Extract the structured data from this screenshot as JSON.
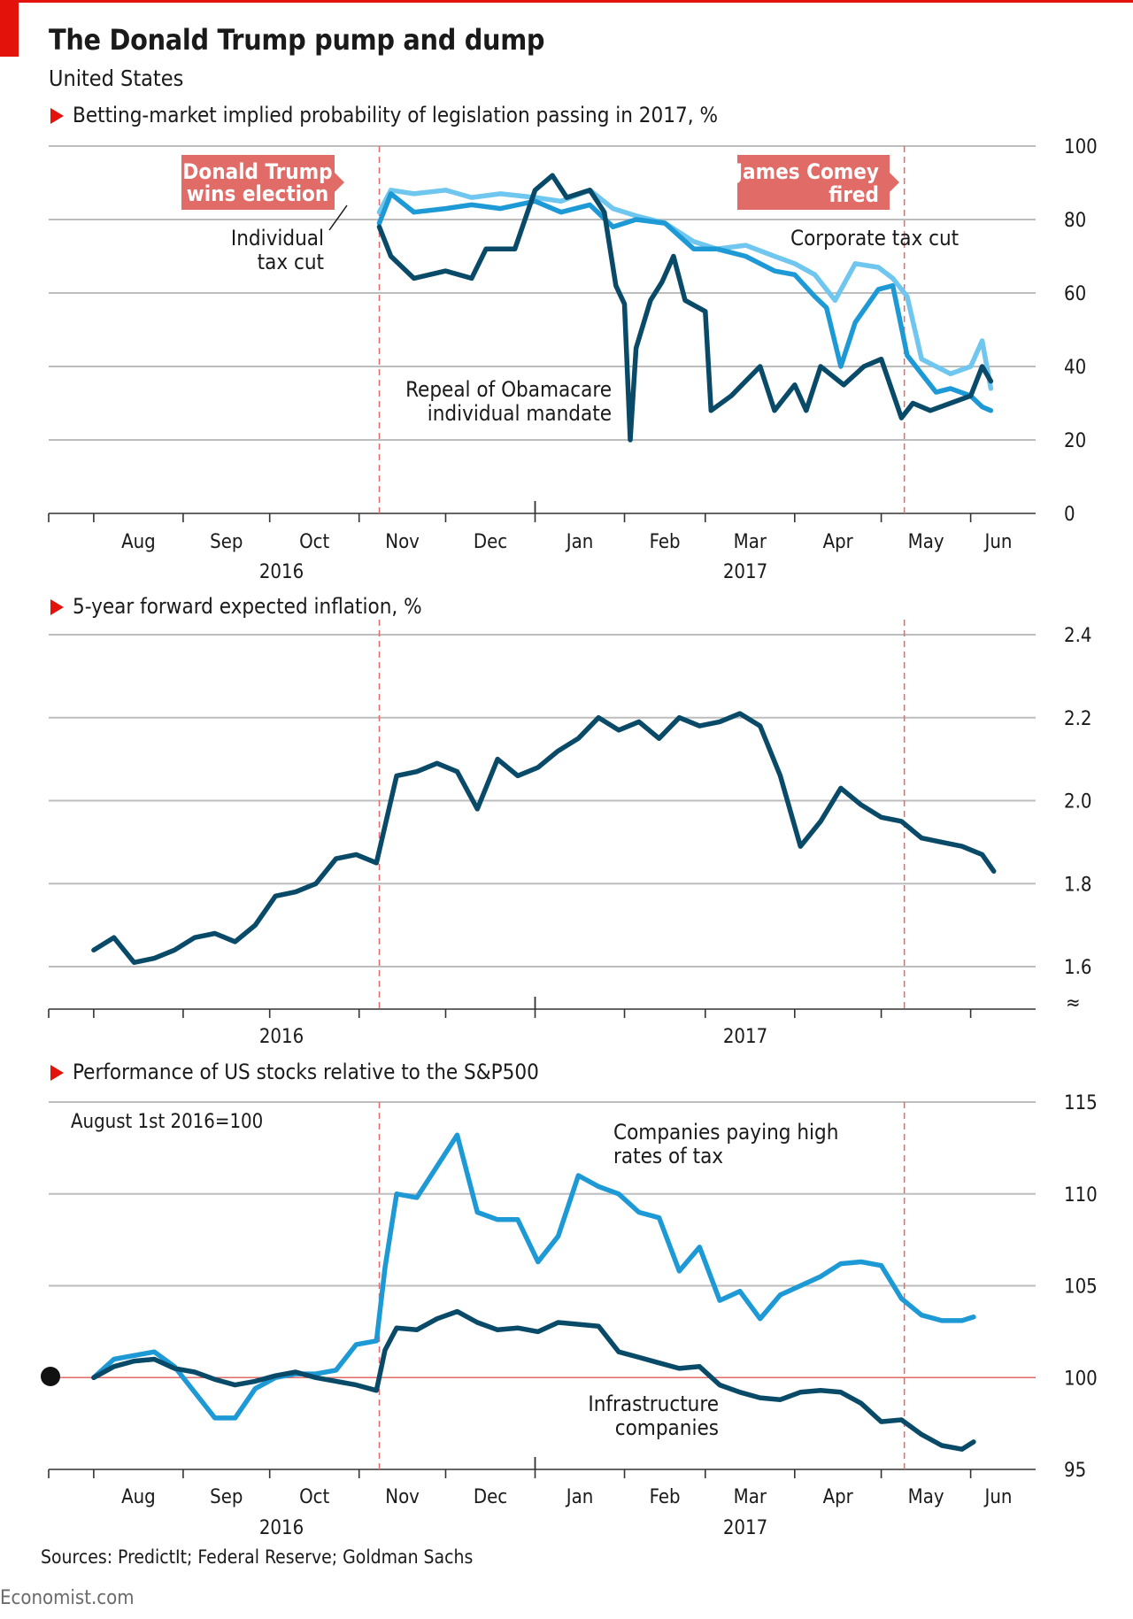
{
  "header": {
    "title": "The Donald Trump pump and dump",
    "subtitle": "United States"
  },
  "footer": {
    "source": "Sources: PredictIt; Federal Reserve; Goldman Sachs",
    "brand": "Economist.com"
  },
  "colors": {
    "accent_red": "#e3120b",
    "event_box": "#e06b67",
    "dark_blue": "#084a67",
    "mid_blue": "#1d9ad6",
    "light_blue": "#6fc6ee",
    "grid": "#bdbdbd"
  },
  "chart_data": [
    {
      "type": "line",
      "title": "Betting-market implied probability of legislation passing in 2017, %",
      "x_axis": {
        "months": [
          "Aug",
          "Sep",
          "Oct",
          "Nov",
          "Dec",
          "Jan",
          "Feb",
          "Mar",
          "Apr",
          "May",
          "Jun"
        ],
        "years": [
          "2016",
          "2017"
        ]
      },
      "y_ticks": [
        "100",
        "80",
        "60",
        "40",
        "20",
        "0"
      ],
      "ylim": [
        0,
        100
      ],
      "events": [
        {
          "label_lines": [
            "Donald Trump",
            "wins election"
          ],
          "date": "2016-11-08"
        },
        {
          "label_lines": [
            "James Comey",
            "fired"
          ],
          "date": "2017-05-09"
        }
      ],
      "series": [
        {
          "name_lines": [
            "Individual",
            "tax cut"
          ],
          "color": "light_blue",
          "x": [
            "2016-11-08",
            "2016-11-12",
            "2016-11-20",
            "2016-12-01",
            "2016-12-10",
            "2016-12-20",
            "2017-01-01",
            "2017-01-10",
            "2017-01-20",
            "2017-01-28",
            "2017-02-05",
            "2017-02-15",
            "2017-02-25",
            "2017-03-05",
            "2017-03-15",
            "2017-03-25",
            "2017-04-01",
            "2017-04-08",
            "2017-04-15",
            "2017-04-22",
            "2017-04-30",
            "2017-05-05",
            "2017-05-10",
            "2017-05-15",
            "2017-05-20",
            "2017-05-25",
            "2017-06-01",
            "2017-06-05",
            "2017-06-08"
          ],
          "y": [
            82,
            88,
            87,
            88,
            86,
            87,
            86,
            85,
            88,
            83,
            81,
            79,
            74,
            72,
            73,
            70,
            68,
            65,
            58,
            68,
            67,
            64,
            59,
            42,
            40,
            38,
            40,
            47,
            34
          ]
        },
        {
          "name_lines": [
            "Corporate tax cut"
          ],
          "color": "mid_blue",
          "x": [
            "2016-11-08",
            "2016-11-12",
            "2016-11-20",
            "2016-12-01",
            "2016-12-10",
            "2016-12-20",
            "2017-01-01",
            "2017-01-10",
            "2017-01-20",
            "2017-01-28",
            "2017-02-05",
            "2017-02-15",
            "2017-02-25",
            "2017-03-05",
            "2017-03-15",
            "2017-03-25",
            "2017-04-01",
            "2017-04-08",
            "2017-04-12",
            "2017-04-17",
            "2017-04-22",
            "2017-04-30",
            "2017-05-05",
            "2017-05-10",
            "2017-05-15",
            "2017-05-20",
            "2017-05-25",
            "2017-06-01",
            "2017-06-05",
            "2017-06-08"
          ],
          "y": [
            79,
            87,
            82,
            83,
            84,
            83,
            85,
            82,
            84,
            78,
            80,
            79,
            72,
            72,
            70,
            66,
            65,
            59,
            56,
            40,
            52,
            61,
            62,
            43,
            38,
            33,
            34,
            32,
            29,
            28
          ]
        },
        {
          "name_lines": [
            "Repeal of Obamacare",
            "individual mandate"
          ],
          "color": "dark_blue",
          "x": [
            "2016-11-08",
            "2016-11-12",
            "2016-11-20",
            "2016-12-01",
            "2016-12-10",
            "2016-12-15",
            "2016-12-25",
            "2017-01-01",
            "2017-01-07",
            "2017-01-12",
            "2017-01-20",
            "2017-01-25",
            "2017-01-29",
            "2017-02-01",
            "2017-02-03",
            "2017-02-05",
            "2017-02-10",
            "2017-02-14",
            "2017-02-18",
            "2017-02-22",
            "2017-03-01",
            "2017-03-03",
            "2017-03-10",
            "2017-03-20",
            "2017-03-25",
            "2017-04-01",
            "2017-04-05",
            "2017-04-10",
            "2017-04-18",
            "2017-04-25",
            "2017-05-01",
            "2017-05-08",
            "2017-05-12",
            "2017-05-18",
            "2017-05-25",
            "2017-06-01",
            "2017-06-05",
            "2017-06-08"
          ],
          "y": [
            78,
            70,
            64,
            66,
            64,
            72,
            72,
            88,
            92,
            86,
            88,
            82,
            62,
            57,
            20,
            45,
            58,
            63,
            70,
            58,
            55,
            28,
            32,
            40,
            28,
            35,
            28,
            40,
            35,
            40,
            42,
            26,
            30,
            28,
            30,
            32,
            40,
            36
          ]
        }
      ]
    },
    {
      "type": "line",
      "title": "5-year forward expected inflation, %",
      "x_axis": {
        "years": [
          "2016",
          "2017"
        ]
      },
      "y_ticks": [
        "2.4",
        "2.2",
        "2.0",
        "1.8",
        "1.6"
      ],
      "ylim": [
        1.55,
        2.4
      ],
      "series": [
        {
          "color": "dark_blue",
          "x": [
            "2016-08-01",
            "2016-08-08",
            "2016-08-15",
            "2016-08-22",
            "2016-08-29",
            "2016-09-05",
            "2016-09-12",
            "2016-09-19",
            "2016-09-26",
            "2016-10-03",
            "2016-10-10",
            "2016-10-17",
            "2016-10-24",
            "2016-10-31",
            "2016-11-07",
            "2016-11-14",
            "2016-11-21",
            "2016-11-28",
            "2016-12-05",
            "2016-12-12",
            "2016-12-19",
            "2016-12-26",
            "2017-01-02",
            "2017-01-09",
            "2017-01-16",
            "2017-01-23",
            "2017-01-30",
            "2017-02-06",
            "2017-02-13",
            "2017-02-20",
            "2017-02-27",
            "2017-03-06",
            "2017-03-13",
            "2017-03-20",
            "2017-03-27",
            "2017-04-03",
            "2017-04-10",
            "2017-04-17",
            "2017-04-24",
            "2017-05-01",
            "2017-05-08",
            "2017-05-15",
            "2017-05-22",
            "2017-05-29",
            "2017-06-05",
            "2017-06-09"
          ],
          "y": [
            1.64,
            1.67,
            1.61,
            1.62,
            1.64,
            1.67,
            1.68,
            1.66,
            1.7,
            1.77,
            1.78,
            1.8,
            1.86,
            1.87,
            1.85,
            2.06,
            2.07,
            2.09,
            2.07,
            1.98,
            2.1,
            2.06,
            2.08,
            2.12,
            2.15,
            2.2,
            2.17,
            2.19,
            2.15,
            2.2,
            2.18,
            2.19,
            2.21,
            2.18,
            2.06,
            1.89,
            1.95,
            2.03,
            1.99,
            1.96,
            1.95,
            1.91,
            1.9,
            1.89,
            1.87,
            1.83
          ]
        }
      ]
    },
    {
      "type": "line",
      "title": "Performance of US stocks relative to the S&P500",
      "note": "August 1st 2016=100",
      "x_axis": {
        "months": [
          "Aug",
          "Sep",
          "Oct",
          "Nov",
          "Dec",
          "Jan",
          "Feb",
          "Mar",
          "Apr",
          "May",
          "Jun"
        ],
        "years": [
          "2016",
          "2017"
        ]
      },
      "y_ticks": [
        "115",
        "110",
        "105",
        "100",
        "95"
      ],
      "ylim": [
        95,
        115
      ],
      "series": [
        {
          "name_lines": [
            "Companies paying high",
            "rates of tax"
          ],
          "color": "mid_blue",
          "x": [
            "2016-08-01",
            "2016-08-08",
            "2016-08-15",
            "2016-08-22",
            "2016-08-29",
            "2016-09-05",
            "2016-09-12",
            "2016-09-19",
            "2016-09-26",
            "2016-10-03",
            "2016-10-10",
            "2016-10-17",
            "2016-10-24",
            "2016-10-31",
            "2016-11-07",
            "2016-11-10",
            "2016-11-14",
            "2016-11-21",
            "2016-11-28",
            "2016-12-05",
            "2016-12-12",
            "2016-12-19",
            "2016-12-26",
            "2017-01-02",
            "2017-01-09",
            "2017-01-16",
            "2017-01-23",
            "2017-01-30",
            "2017-02-06",
            "2017-02-13",
            "2017-02-20",
            "2017-02-27",
            "2017-03-06",
            "2017-03-13",
            "2017-03-20",
            "2017-03-27",
            "2017-04-03",
            "2017-04-10",
            "2017-04-17",
            "2017-04-24",
            "2017-05-01",
            "2017-05-08",
            "2017-05-15",
            "2017-05-22",
            "2017-05-29",
            "2017-06-02"
          ],
          "y": [
            100,
            101,
            101.2,
            101.4,
            100.6,
            99.2,
            97.8,
            97.8,
            99.4,
            100,
            100.2,
            100.2,
            100.4,
            101.8,
            102,
            106,
            110,
            109.8,
            111.5,
            113.2,
            109,
            108.6,
            108.6,
            106.3,
            107.7,
            111,
            110.4,
            110,
            109,
            108.7,
            105.8,
            107.1,
            104.2,
            104.7,
            103.2,
            104.5,
            105,
            105.5,
            106.2,
            106.3,
            106.1,
            104.3,
            103.4,
            103.1,
            103.1,
            103.3
          ]
        },
        {
          "name_lines": [
            "Infrastructure",
            "companies"
          ],
          "color": "dark_blue",
          "x": [
            "2016-08-01",
            "2016-08-08",
            "2016-08-15",
            "2016-08-22",
            "2016-08-29",
            "2016-09-05",
            "2016-09-12",
            "2016-09-19",
            "2016-09-26",
            "2016-10-03",
            "2016-10-10",
            "2016-10-17",
            "2016-10-24",
            "2016-10-31",
            "2016-11-07",
            "2016-11-10",
            "2016-11-14",
            "2016-11-21",
            "2016-11-28",
            "2016-12-05",
            "2016-12-12",
            "2016-12-19",
            "2016-12-26",
            "2017-01-02",
            "2017-01-09",
            "2017-01-16",
            "2017-01-23",
            "2017-01-30",
            "2017-02-06",
            "2017-02-13",
            "2017-02-20",
            "2017-02-27",
            "2017-03-06",
            "2017-03-13",
            "2017-03-20",
            "2017-03-27",
            "2017-04-03",
            "2017-04-10",
            "2017-04-17",
            "2017-04-24",
            "2017-05-01",
            "2017-05-08",
            "2017-05-15",
            "2017-05-22",
            "2017-05-29",
            "2017-06-02"
          ],
          "y": [
            100,
            100.6,
            100.9,
            101,
            100.5,
            100.3,
            99.9,
            99.6,
            99.8,
            100.1,
            100.3,
            100,
            99.8,
            99.6,
            99.3,
            101.5,
            102.7,
            102.6,
            103.2,
            103.6,
            103,
            102.6,
            102.7,
            102.5,
            103,
            102.9,
            102.8,
            101.4,
            101.1,
            100.8,
            100.5,
            100.6,
            99.6,
            99.2,
            98.9,
            98.8,
            99.2,
            99.3,
            99.2,
            98.6,
            97.6,
            97.7,
            96.9,
            96.3,
            96.1,
            96.5
          ]
        }
      ]
    }
  ]
}
